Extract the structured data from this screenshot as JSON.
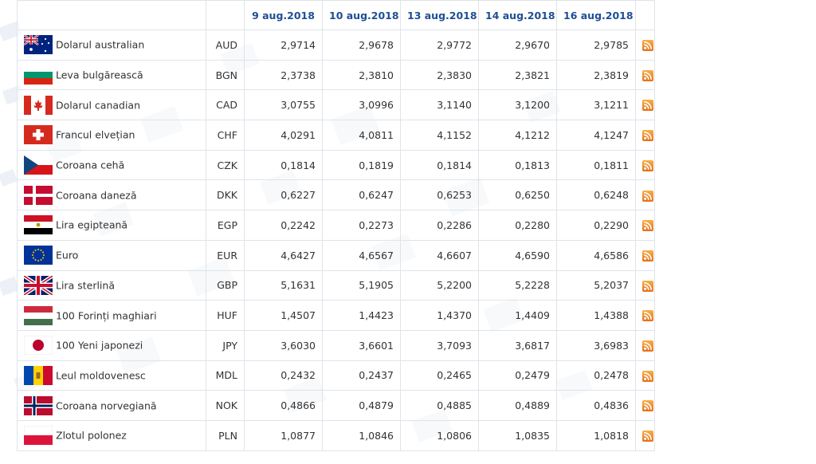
{
  "table": {
    "headers": [
      "9 aug.2018",
      "10 aug.2018",
      "13 aug.2018",
      "14 aug.2018",
      "16 aug.2018"
    ],
    "rows": [
      {
        "flag": "australia-flag-icon",
        "name": "Dolarul australian",
        "code": "AUD",
        "values": [
          "2,9714",
          "2,9678",
          "2,9772",
          "2,9670",
          "2,9785"
        ]
      },
      {
        "flag": "bulgaria-flag-icon",
        "name": "Leva bulgărească",
        "code": "BGN",
        "values": [
          "2,3738",
          "2,3810",
          "2,3830",
          "2,3821",
          "2,3819"
        ]
      },
      {
        "flag": "canada-flag-icon",
        "name": "Dolarul canadian",
        "code": "CAD",
        "values": [
          "3,0755",
          "3,0996",
          "3,1140",
          "3,1200",
          "3,1211"
        ]
      },
      {
        "flag": "switzerland-flag-icon",
        "name": "Francul elvețian",
        "code": "CHF",
        "values": [
          "4,0291",
          "4,0811",
          "4,1152",
          "4,1212",
          "4,1247"
        ]
      },
      {
        "flag": "czech-flag-icon",
        "name": "Coroana cehă",
        "code": "CZK",
        "values": [
          "0,1814",
          "0,1819",
          "0,1814",
          "0,1813",
          "0,1811"
        ]
      },
      {
        "flag": "denmark-flag-icon",
        "name": "Coroana daneză",
        "code": "DKK",
        "values": [
          "0,6227",
          "0,6247",
          "0,6253",
          "0,6250",
          "0,6248"
        ]
      },
      {
        "flag": "egypt-flag-icon",
        "name": "Lira egipteană",
        "code": "EGP",
        "values": [
          "0,2242",
          "0,2273",
          "0,2286",
          "0,2280",
          "0,2290"
        ]
      },
      {
        "flag": "eu-flag-icon",
        "name": "Euro",
        "code": "EUR",
        "values": [
          "4,6427",
          "4,6567",
          "4,6607",
          "4,6590",
          "4,6586"
        ]
      },
      {
        "flag": "uk-flag-icon",
        "name": "Lira sterlină",
        "code": "GBP",
        "values": [
          "5,1631",
          "5,1905",
          "5,2200",
          "5,2228",
          "5,2037"
        ]
      },
      {
        "flag": "hungary-flag-icon",
        "name": "100 Forinți maghiari",
        "code": "HUF",
        "values": [
          "1,4507",
          "1,4423",
          "1,4370",
          "1,4409",
          "1,4388"
        ]
      },
      {
        "flag": "japan-flag-icon",
        "name": "100 Yeni japonezi",
        "code": "JPY",
        "values": [
          "3,6030",
          "3,6601",
          "3,7093",
          "3,6817",
          "3,6983"
        ]
      },
      {
        "flag": "moldova-flag-icon",
        "name": "Leul moldovenesc",
        "code": "MDL",
        "values": [
          "0,2432",
          "0,2437",
          "0,2465",
          "0,2479",
          "0,2478"
        ]
      },
      {
        "flag": "norway-flag-icon",
        "name": "Coroana norvegiană",
        "code": "NOK",
        "values": [
          "0,4866",
          "0,4879",
          "0,4885",
          "0,4889",
          "0,4836"
        ]
      },
      {
        "flag": "poland-flag-icon",
        "name": "Zlotul polonez",
        "code": "PLN",
        "values": [
          "1,0877",
          "1,0846",
          "1,0806",
          "1,0835",
          "1,0818"
        ]
      }
    ],
    "rss_icon": "rss-feed-icon"
  },
  "colors": {
    "header_text": "#1f4e96",
    "border": "#dfe4ea",
    "rss_orange": "#f28c28",
    "background_pattern": "#e9eef6"
  }
}
